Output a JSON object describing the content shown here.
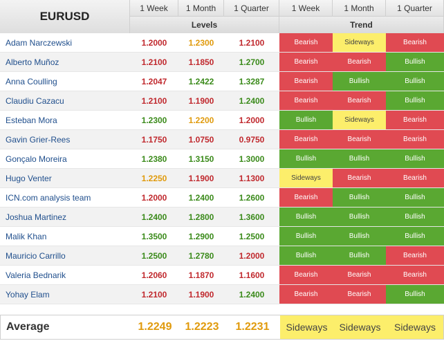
{
  "header": {
    "pair": "EURUSD",
    "periods": [
      "1 Week",
      "1 Month",
      "1 Quarter"
    ],
    "group_levels": "Levels",
    "group_trend": "Trend"
  },
  "colors": {
    "bearish": "#e04a52",
    "bullish": "#5aa832",
    "sideways": "#fcee6b",
    "level_red": "#c0282d",
    "level_green": "#3a8a1a",
    "level_orange": "#e09a0c"
  },
  "rows": [
    {
      "name": "Adam Narczewski",
      "levels": [
        "1.2000",
        "1.2300",
        "1.2100"
      ],
      "level_colors": [
        "red",
        "orange",
        "red"
      ],
      "trend": [
        "Bearish",
        "Sideways",
        "Bearish"
      ]
    },
    {
      "name": "Alberto Muñoz",
      "levels": [
        "1.2100",
        "1.1850",
        "1.2700"
      ],
      "level_colors": [
        "red",
        "red",
        "green"
      ],
      "trend": [
        "Bearish",
        "Bearish",
        "Bullish"
      ]
    },
    {
      "name": "Anna Coulling",
      "levels": [
        "1.2047",
        "1.2422",
        "1.3287"
      ],
      "level_colors": [
        "red",
        "green",
        "green"
      ],
      "trend": [
        "Bearish",
        "Bullish",
        "Bullish"
      ]
    },
    {
      "name": "Claudiu Cazacu",
      "levels": [
        "1.2100",
        "1.1900",
        "1.2400"
      ],
      "level_colors": [
        "red",
        "red",
        "green"
      ],
      "trend": [
        "Bearish",
        "Bearish",
        "Bullish"
      ]
    },
    {
      "name": "Esteban Mora",
      "levels": [
        "1.2300",
        "1.2200",
        "1.2000"
      ],
      "level_colors": [
        "green",
        "orange",
        "red"
      ],
      "trend": [
        "Bullish",
        "Sideways",
        "Bearish"
      ]
    },
    {
      "name": "Gavin Grier-Rees",
      "levels": [
        "1.1750",
        "1.0750",
        "0.9750"
      ],
      "level_colors": [
        "red",
        "red",
        "red"
      ],
      "trend": [
        "Bearish",
        "Bearish",
        "Bearish"
      ]
    },
    {
      "name": "Gonçalo Moreira",
      "levels": [
        "1.2380",
        "1.3150",
        "1.3000"
      ],
      "level_colors": [
        "green",
        "green",
        "green"
      ],
      "trend": [
        "Bullish",
        "Bullish",
        "Bullish"
      ]
    },
    {
      "name": "Hugo Venter",
      "levels": [
        "1.2250",
        "1.1900",
        "1.1300"
      ],
      "level_colors": [
        "orange",
        "red",
        "red"
      ],
      "trend": [
        "Sideways",
        "Bearish",
        "Bearish"
      ]
    },
    {
      "name": "ICN.com analysis team",
      "levels": [
        "1.2000",
        "1.2400",
        "1.2600"
      ],
      "level_colors": [
        "red",
        "green",
        "green"
      ],
      "trend": [
        "Bearish",
        "Bullish",
        "Bullish"
      ]
    },
    {
      "name": "Joshua Martinez",
      "levels": [
        "1.2400",
        "1.2800",
        "1.3600"
      ],
      "level_colors": [
        "green",
        "green",
        "green"
      ],
      "trend": [
        "Bullish",
        "Bullish",
        "Bullish"
      ]
    },
    {
      "name": "Malik Khan",
      "levels": [
        "1.3500",
        "1.2900",
        "1.2500"
      ],
      "level_colors": [
        "green",
        "green",
        "green"
      ],
      "trend": [
        "Bullish",
        "Bullish",
        "Bullish"
      ]
    },
    {
      "name": "Mauricio Carrillo",
      "levels": [
        "1.2500",
        "1.2780",
        "1.2000"
      ],
      "level_colors": [
        "green",
        "green",
        "red"
      ],
      "trend": [
        "Bullish",
        "Bullish",
        "Bearish"
      ]
    },
    {
      "name": "Valeria Bednarik",
      "levels": [
        "1.2060",
        "1.1870",
        "1.1600"
      ],
      "level_colors": [
        "red",
        "red",
        "red"
      ],
      "trend": [
        "Bearish",
        "Bearish",
        "Bearish"
      ]
    },
    {
      "name": "Yohay Elam",
      "levels": [
        "1.2100",
        "1.1900",
        "1.2400"
      ],
      "level_colors": [
        "red",
        "red",
        "green"
      ],
      "trend": [
        "Bearish",
        "Bearish",
        "Bullish"
      ]
    }
  ],
  "average": {
    "label": "Average",
    "levels": [
      "1.2249",
      "1.2223",
      "1.2231"
    ],
    "trend": [
      "Sideways",
      "Sideways",
      "Sideways"
    ]
  }
}
